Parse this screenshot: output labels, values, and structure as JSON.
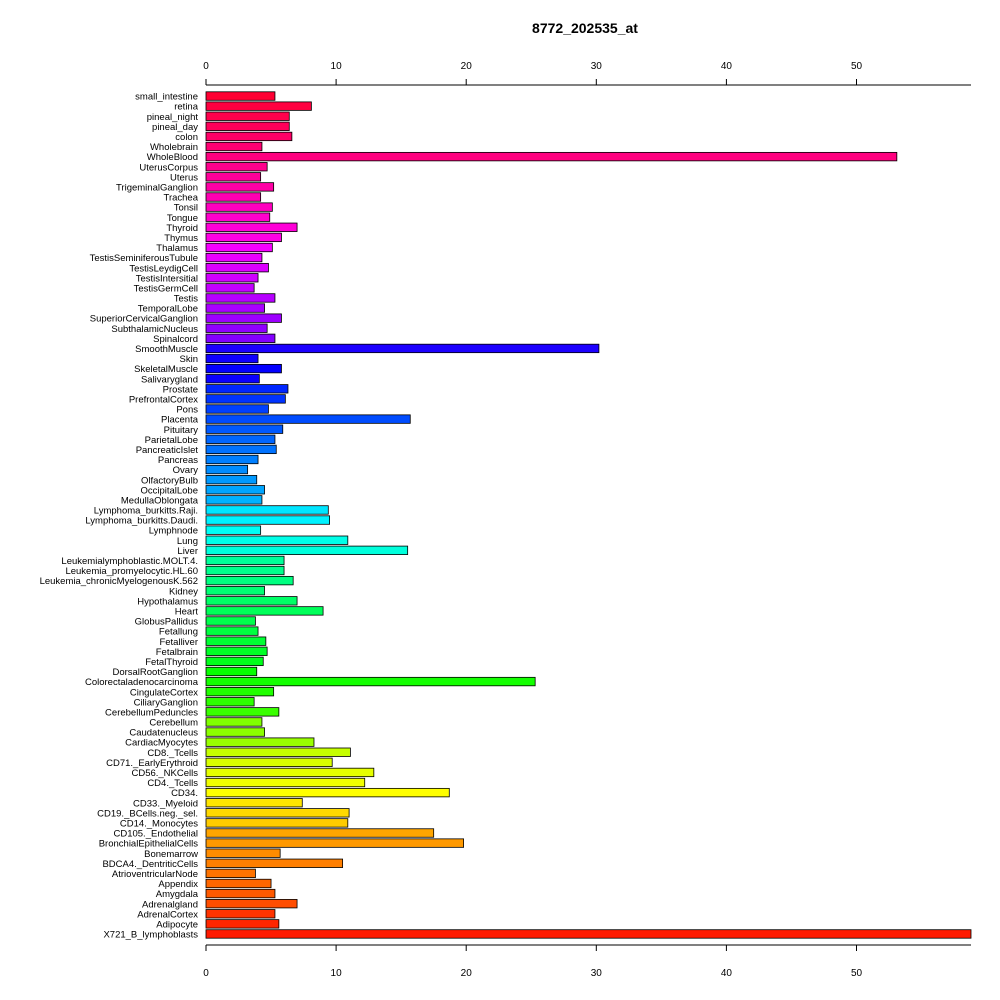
{
  "chart_data": {
    "type": "bar",
    "orientation": "horizontal",
    "title": "8772_202535_at",
    "xlabel": "",
    "ylabel": "",
    "xlim": [
      0,
      58.8
    ],
    "x_ticks": [
      0,
      10,
      20,
      30,
      40,
      50
    ],
    "grid": false,
    "axes": [
      "top",
      "bottom"
    ],
    "categories": [
      "small_intestine",
      "retina",
      "pineal_night",
      "pineal_day",
      "colon",
      "Wholebrain",
      "WholeBlood",
      "UterusCorpus",
      "Uterus",
      "TrigeminalGanglion",
      "Trachea",
      "Tonsil",
      "Tongue",
      "Thyroid",
      "Thymus",
      "Thalamus",
      "TestisSeminiferousTubule",
      "TestisLeydigCell",
      "TestisIntersitial",
      "TestisGermCell",
      "Testis",
      "TemporalLobe",
      "SuperiorCervicalGanglion",
      "SubthalamicNucleus",
      "Spinalcord",
      "SmoothMuscle",
      "Skin",
      "SkeletalMuscle",
      "Salivarygland",
      "Prostate",
      "PrefrontalCortex",
      "Pons",
      "Placenta",
      "Pituitary",
      "ParietalLobe",
      "PancreaticIslet",
      "Pancreas",
      "Ovary",
      "OlfactoryBulb",
      "OccipitalLobe",
      "MedullaOblongata",
      "Lymphoma_burkitts.Raji.",
      "Lymphoma_burkitts.Daudi.",
      "Lymphnode",
      "Lung",
      "Liver",
      "Leukemialymphoblastic.MOLT.4.",
      "Leukemia_promyelocytic.HL.60",
      "Leukemia_chronicMyelogenousK.562",
      "Kidney",
      "Hypothalamus",
      "Heart",
      "GlobusPallidus",
      "Fetallung",
      "Fetalliver",
      "Fetalbrain",
      "FetalThyroid",
      "DorsalRootGanglion",
      "Colorectaladenocarcinoma",
      "CingulateCortex",
      "CiliaryGanglion",
      "CerebellumPeduncles",
      "Cerebellum",
      "Caudatenucleus",
      "CardiacMyocytes",
      "CD8._Tcells",
      "CD71._EarlyErythroid",
      "CD56._NKCells",
      "CD4._Tcells",
      "CD34.",
      "CD33._Myeloid",
      "CD19._BCells.neg._sel.",
      "CD14._Monocytes",
      "CD105._Endothelial",
      "BronchialEpithelialCells",
      "Bonemarrow",
      "BDCA4._DentriticCells",
      "AtrioventricularNode",
      "Appendix",
      "Amygdala",
      "Adrenalgland",
      "AdrenalCortex",
      "Adipocyte",
      "X721_B_lymphoblasts"
    ],
    "values": [
      5.3,
      8.1,
      6.4,
      6.4,
      6.6,
      4.3,
      53.1,
      4.7,
      4.2,
      5.2,
      4.2,
      5.1,
      4.9,
      7.0,
      5.8,
      5.1,
      4.3,
      4.8,
      4.0,
      3.7,
      5.3,
      4.5,
      5.8,
      4.7,
      5.3,
      30.2,
      4.0,
      5.8,
      4.1,
      6.3,
      6.1,
      4.8,
      15.7,
      5.9,
      5.3,
      5.4,
      4.0,
      3.2,
      3.9,
      4.5,
      4.3,
      9.4,
      9.5,
      4.2,
      10.9,
      15.5,
      6.0,
      6.0,
      6.7,
      4.5,
      7.0,
      9.0,
      3.8,
      4.0,
      4.6,
      4.7,
      4.4,
      3.9,
      25.3,
      5.2,
      3.7,
      5.6,
      4.3,
      4.5,
      8.3,
      11.1,
      9.7,
      12.9,
      12.2,
      18.7,
      7.4,
      11.0,
      10.9,
      17.5,
      19.8,
      5.7,
      10.5,
      3.8,
      5.0,
      5.3,
      7.0,
      5.3,
      5.6,
      58.8
    ],
    "colors": [
      "#FF0033",
      "#FF0040",
      "#FF004C",
      "#FF0059",
      "#FF0066",
      "#FF0072",
      "#FF007F",
      "#FF008C",
      "#FF0099",
      "#FF00A5",
      "#FF00B2",
      "#FF00BF",
      "#FF00CC",
      "#FF00D8",
      "#FF00E5",
      "#F600FF",
      "#E900FF",
      "#DC00FF",
      "#D000FF",
      "#C300FF",
      "#B600FF",
      "#A900FF",
      "#9D00FF",
      "#9000FF",
      "#8300FF",
      "#1C00FF",
      "#0F00FF",
      "#0300FF",
      "#0A00FF",
      "#0026FF",
      "#0033FF",
      "#0040FF",
      "#004CFF",
      "#0059FF",
      "#0066FF",
      "#0072FF",
      "#007FFF",
      "#008CFF",
      "#0099FF",
      "#00A5FF",
      "#00B2FF",
      "#00E5FF",
      "#00F2FF",
      "#00FFF6",
      "#00FFE9",
      "#00FFDC",
      "#00FF99",
      "#00FF8C",
      "#00FF80",
      "#00FF73",
      "#00FF66",
      "#00FF59",
      "#00FF4D",
      "#00FF40",
      "#00FF33",
      "#00FF26",
      "#00FF1A",
      "#06FF00",
      "#13FF00",
      "#20FF00",
      "#2DFF00",
      "#39FF00",
      "#80FF00",
      "#8CFF00",
      "#99FF00",
      "#C6FF00",
      "#D9FF00",
      "#E6FF00",
      "#F2FF00",
      "#FFFF00",
      "#FFE600",
      "#FFD900",
      "#FFCC00",
      "#FFA500",
      "#FF9900",
      "#FF8C00",
      "#FF7F00",
      "#FF7300",
      "#FF6600",
      "#FF5900",
      "#FF4D00",
      "#FF3300",
      "#FF2600",
      "#FF1A00"
    ]
  }
}
